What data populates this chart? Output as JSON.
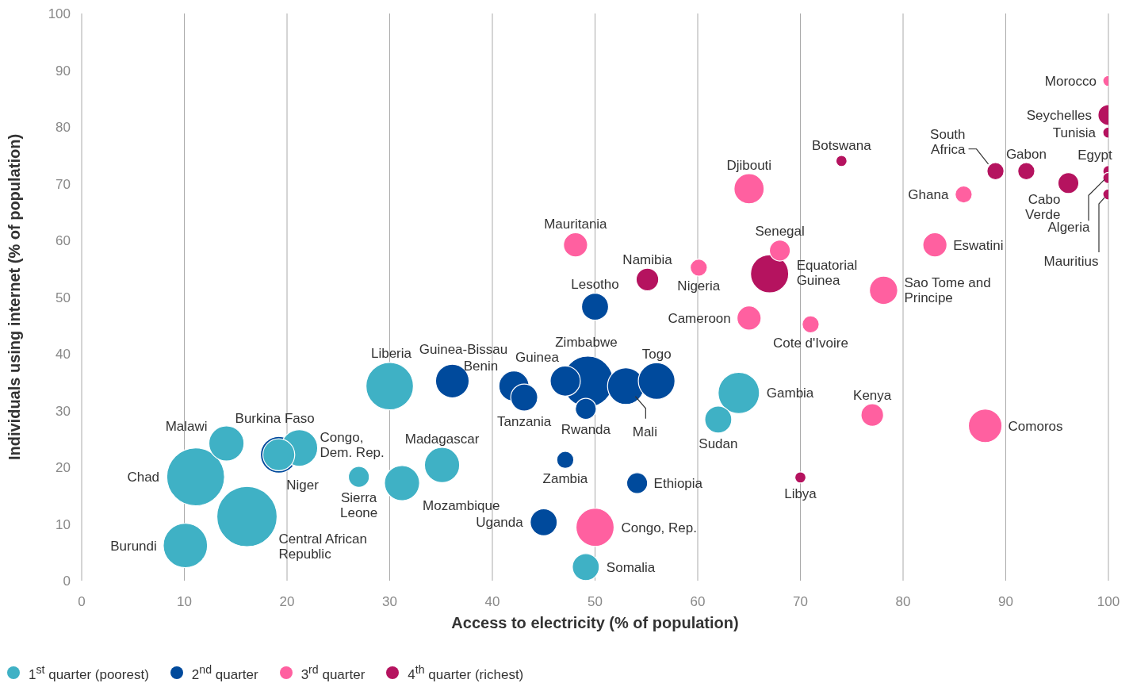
{
  "chart_data": {
    "type": "bubble",
    "xlabel": "Access to electricity (% of population)",
    "ylabel": "Individuals using internet (% of population)",
    "xlim": [
      0,
      100
    ],
    "xticks": [
      0,
      10,
      20,
      30,
      40,
      50,
      60,
      70,
      80,
      90,
      100
    ],
    "ylim": [
      0,
      100
    ],
    "yticks": [
      0,
      10,
      20,
      30,
      40,
      50,
      60,
      70,
      80,
      90,
      100
    ],
    "grid": "x",
    "legend": "bottom left",
    "series": [
      {
        "name": "1$^{st}$ quarter (poorest)",
        "color": "#3fb1c5",
        "x": [
          11.1,
          16.1,
          10.1,
          14.1,
          21.2,
          19.2,
          30.0,
          27.0,
          31.2,
          35.1,
          64.0,
          62.0,
          49.1
        ],
        "values": [
          18.3,
          11.3,
          6.2,
          24.2,
          23.4,
          22.2,
          34.3,
          18.3,
          17.2,
          20.4,
          33.1,
          28.4,
          2.4
        ],
        "sizes": [
          0.92,
          1,
          0.54,
          0.34,
          0.37,
          0.28,
          0.62,
          0.12,
          0.34,
          0.34,
          0.47,
          0.2,
          0.2
        ]
      },
      {
        "name": "2$^{nd}$ quarter",
        "color": "#004a9c",
        "x": [
          19.2,
          49.3,
          36.1,
          42.1,
          43.1,
          47.1,
          49.1,
          53.0,
          56.0,
          50.0,
          47.1,
          54.1,
          45.0
        ],
        "values": [
          22.2,
          35.1,
          35.2,
          34.3,
          32.3,
          35.2,
          30.3,
          34.3,
          35.2,
          48.3,
          21.3,
          17.2,
          10.3
        ],
        "sizes": [
          0.37,
          0.71,
          0.31,
          0.25,
          0.2,
          0.25,
          0.12,
          0.37,
          0.37,
          0.2,
          0.08,
          0.12,
          0.2
        ]
      },
      {
        "name": "3$^{rd}$ quarter",
        "color": "#ff60a0",
        "x": [
          100,
          65.0,
          48.1,
          68.0,
          60.1,
          65.0,
          71.0,
          85.9,
          83.1,
          78.1,
          77.0,
          88.0,
          50.0
        ],
        "values": [
          88.1,
          69.1,
          59.2,
          58.2,
          55.2,
          46.3,
          45.2,
          68.1,
          59.2,
          51.2,
          29.2,
          27.3,
          9.4
        ],
        "sizes": [
          0.034,
          0.25,
          0.16,
          0.12,
          0.08,
          0.16,
          0.08,
          0.08,
          0.16,
          0.22,
          0.14,
          0.31,
          0.4
        ]
      },
      {
        "name": "4$^{th}$ quarter (richest)",
        "color": "#b5135f",
        "x": [
          74.0,
          55.1,
          67.0,
          70.0,
          100,
          100,
          89.0,
          92.0,
          96.1,
          100,
          100,
          100
        ],
        "values": [
          74.0,
          53.1,
          54.1,
          18.2,
          82.1,
          79.0,
          72.2,
          72.2,
          70.1,
          72.2,
          71.0,
          68.1
        ],
        "sizes": [
          0.034,
          0.14,
          0.4,
          0.034,
          0.12,
          0.034,
          0.08,
          0.08,
          0.12,
          0.034,
          0.034,
          0.034
        ]
      }
    ],
    "annotations": [
      {
        "text": "Chad",
        "x": 11.1,
        "y": 18.3
      },
      {
        "text": "Central African Republic",
        "x": 16.1,
        "y": 11.3
      },
      {
        "text": "Burundi",
        "x": 10.1,
        "y": 6.2
      },
      {
        "text": "Malawi",
        "x": 14.1,
        "y": 24.2
      },
      {
        "text": "Congo, Dem. Rep.",
        "x": 21.2,
        "y": 23.4
      },
      {
        "text": "Niger",
        "x": 19.2,
        "y": 22.2
      },
      {
        "text": "Liberia",
        "x": 30.0,
        "y": 34.3
      },
      {
        "text": "Sierra Leone",
        "x": 27.0,
        "y": 18.3
      },
      {
        "text": "Mozambique",
        "x": 31.2,
        "y": 17.2
      },
      {
        "text": "Madagascar",
        "x": 35.1,
        "y": 20.4
      },
      {
        "text": "Gambia",
        "x": 64.0,
        "y": 33.1
      },
      {
        "text": "Sudan",
        "x": 62.0,
        "y": 28.4
      },
      {
        "text": "Somalia",
        "x": 49.1,
        "y": 2.4
      },
      {
        "text": "Burkina Faso",
        "x": 19.2,
        "y": 22.2
      },
      {
        "text": "Zimbabwe",
        "x": 49.3,
        "y": 35.1
      },
      {
        "text": "Guinea-Bissau",
        "x": 36.1,
        "y": 35.2
      },
      {
        "text": "Benin",
        "x": 42.1,
        "y": 34.3
      },
      {
        "text": "Tanzania",
        "x": 43.1,
        "y": 32.3
      },
      {
        "text": "Guinea",
        "x": 47.1,
        "y": 35.2
      },
      {
        "text": "Rwanda",
        "x": 49.1,
        "y": 30.3
      },
      {
        "text": "Mali",
        "x": 53.0,
        "y": 34.3
      },
      {
        "text": "Togo",
        "x": 56.0,
        "y": 35.2
      },
      {
        "text": "Lesotho",
        "x": 50.0,
        "y": 48.3
      },
      {
        "text": "Zambia",
        "x": 47.1,
        "y": 21.3
      },
      {
        "text": "Ethiopia",
        "x": 54.1,
        "y": 17.2
      },
      {
        "text": "Uganda",
        "x": 45.0,
        "y": 10.3
      },
      {
        "text": "Morocco",
        "x": 100,
        "y": 88.1
      },
      {
        "text": "Djibouti",
        "x": 65.0,
        "y": 69.1
      },
      {
        "text": "Mauritania",
        "x": 48.1,
        "y": 59.2
      },
      {
        "text": "Senegal",
        "x": 68.0,
        "y": 58.2
      },
      {
        "text": "Nigeria",
        "x": 60.1,
        "y": 55.2
      },
      {
        "text": "Cameroon",
        "x": 65.0,
        "y": 46.3
      },
      {
        "text": "Cote d'Ivoire",
        "x": 71.0,
        "y": 45.2
      },
      {
        "text": "Ghana",
        "x": 85.9,
        "y": 68.1
      },
      {
        "text": "Eswatini",
        "x": 83.1,
        "y": 59.2
      },
      {
        "text": "Sao Tome and Principe",
        "x": 78.1,
        "y": 51.2
      },
      {
        "text": "Kenya",
        "x": 77.0,
        "y": 29.2
      },
      {
        "text": "Comoros",
        "x": 88.0,
        "y": 27.3
      },
      {
        "text": "Congo, Rep.",
        "x": 50.0,
        "y": 9.4
      },
      {
        "text": "Botswana",
        "x": 74.0,
        "y": 74.0
      },
      {
        "text": "Namibia",
        "x": 55.1,
        "y": 53.1
      },
      {
        "text": "Equatorial Guinea",
        "x": 67.0,
        "y": 54.1
      },
      {
        "text": "Libya",
        "x": 70.0,
        "y": 18.2
      },
      {
        "text": "Seychelles",
        "x": 100,
        "y": 82.1
      },
      {
        "text": "Tunisia",
        "x": 100,
        "y": 79.0
      },
      {
        "text": "South Africa",
        "x": 89.0,
        "y": 72.2
      },
      {
        "text": "Gabon",
        "x": 92.0,
        "y": 72.2
      },
      {
        "text": "Cabo Verde",
        "x": 96.1,
        "y": 70.1
      },
      {
        "text": "Egypt",
        "x": 100,
        "y": 72.2
      },
      {
        "text": "Algeria",
        "x": 100,
        "y": 71.0
      },
      {
        "text": "Mauritius",
        "x": 100,
        "y": 68.1
      }
    ]
  }
}
